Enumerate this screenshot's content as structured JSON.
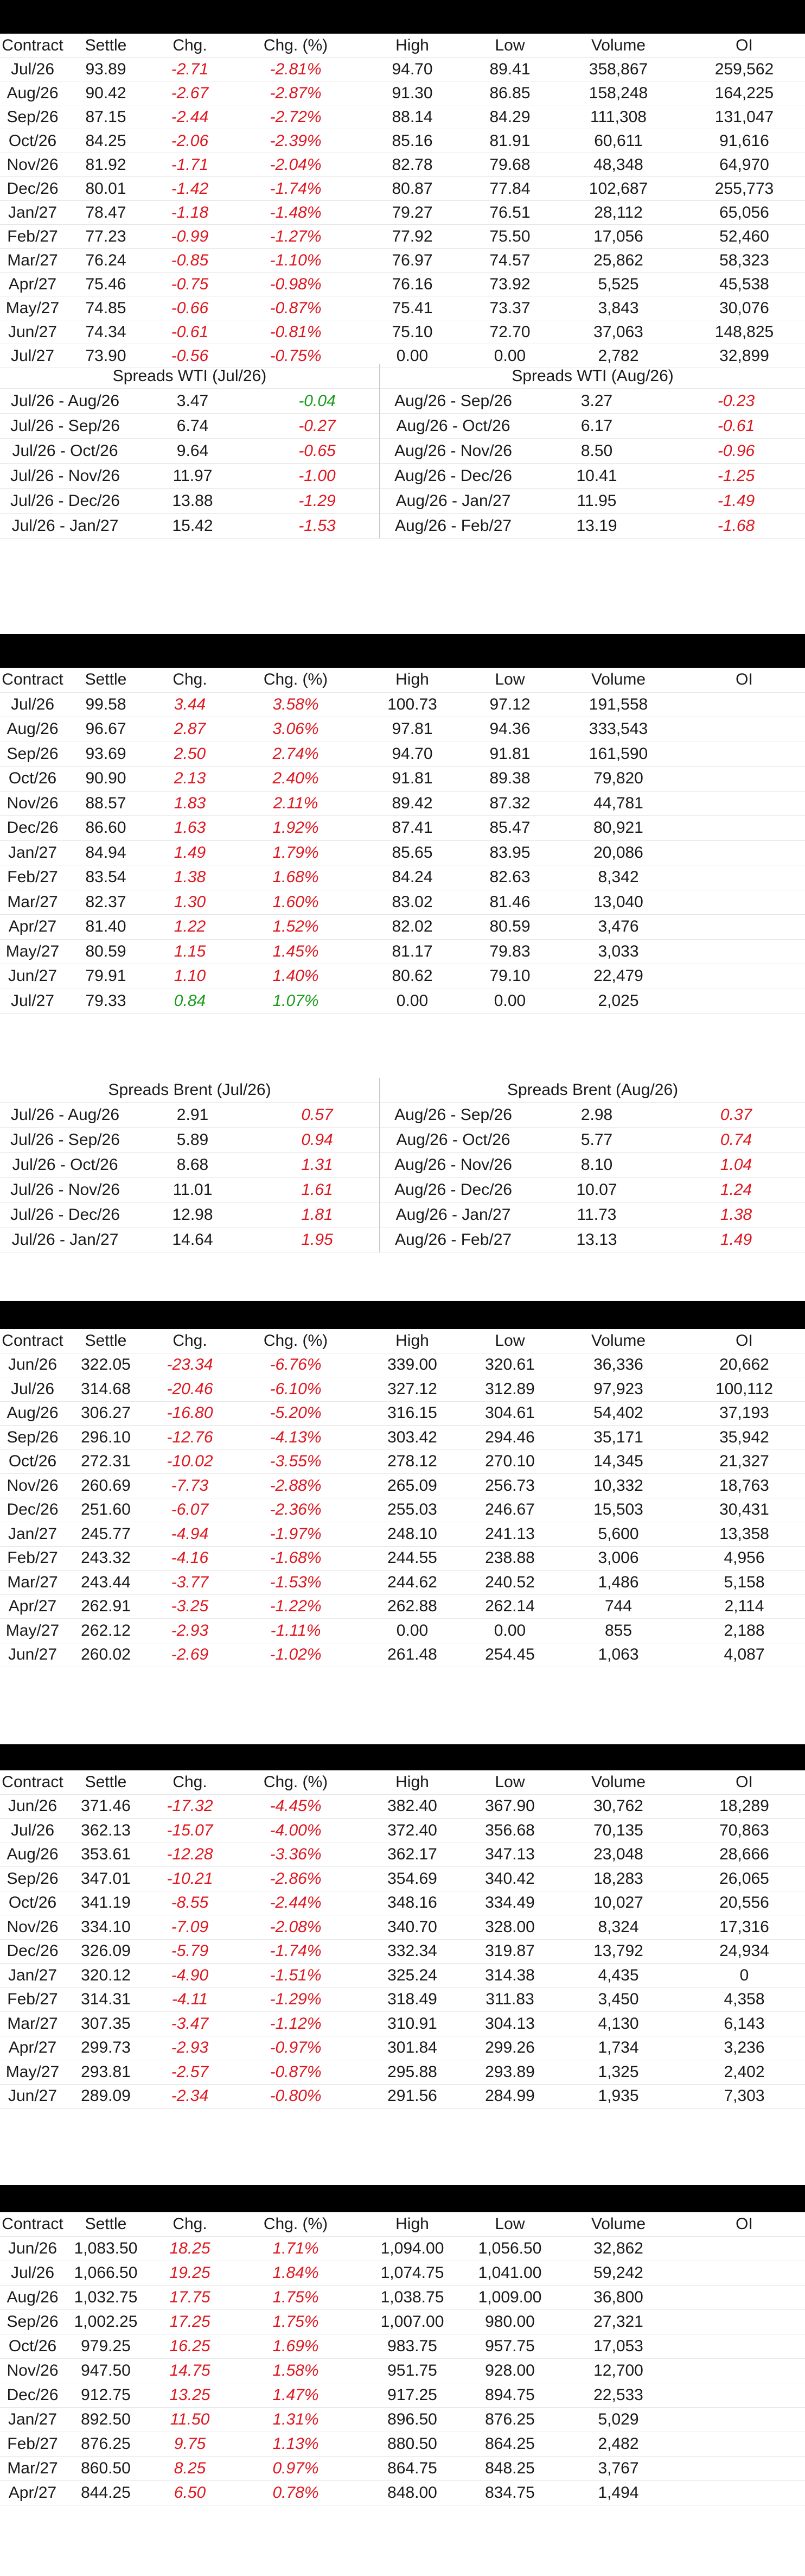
{
  "headers": [
    "Contract",
    "Settle",
    "Chg.",
    "Chg. (%)",
    "High",
    "Low",
    "Volume",
    "OI"
  ],
  "wti": {
    "rows": [
      [
        "Jul/26",
        "93.89",
        "-2.71",
        "-2.81%",
        "94.70",
        "89.41",
        "358,867",
        "259,562"
      ],
      [
        "Aug/26",
        "90.42",
        "-2.67",
        "-2.87%",
        "91.30",
        "86.85",
        "158,248",
        "164,225"
      ],
      [
        "Sep/26",
        "87.15",
        "-2.44",
        "-2.72%",
        "88.14",
        "84.29",
        "111,308",
        "131,047"
      ],
      [
        "Oct/26",
        "84.25",
        "-2.06",
        "-2.39%",
        "85.16",
        "81.91",
        "60,611",
        "91,616"
      ],
      [
        "Nov/26",
        "81.92",
        "-1.71",
        "-2.04%",
        "82.78",
        "79.68",
        "48,348",
        "64,970"
      ],
      [
        "Dec/26",
        "80.01",
        "-1.42",
        "-1.74%",
        "80.87",
        "77.84",
        "102,687",
        "255,773"
      ],
      [
        "Jan/27",
        "78.47",
        "-1.18",
        "-1.48%",
        "79.27",
        "76.51",
        "28,112",
        "65,056"
      ],
      [
        "Feb/27",
        "77.23",
        "-0.99",
        "-1.27%",
        "77.92",
        "75.50",
        "17,056",
        "52,460"
      ],
      [
        "Mar/27",
        "76.24",
        "-0.85",
        "-1.10%",
        "76.97",
        "74.57",
        "25,862",
        "58,323"
      ],
      [
        "Apr/27",
        "75.46",
        "-0.75",
        "-0.98%",
        "76.16",
        "73.92",
        "5,525",
        "45,538"
      ],
      [
        "May/27",
        "74.85",
        "-0.66",
        "-0.87%",
        "75.41",
        "73.37",
        "3,843",
        "30,076"
      ],
      [
        "Jun/27",
        "74.34",
        "-0.61",
        "-0.81%",
        "75.10",
        "72.70",
        "37,063",
        "148,825"
      ],
      [
        "Jul/27",
        "73.90",
        "-0.56",
        "-0.75%",
        "0.00",
        "0.00",
        "2,782",
        "32,899"
      ]
    ],
    "spreads": {
      "left_title": "Spreads WTI (Jul/26)",
      "right_title": "Spreads WTI (Aug/26)",
      "rows": [
        [
          "Jul/26 - Aug/26",
          "3.47",
          "-0.04",
          "Aug/26 - Sep/26",
          "3.27",
          "-0.23"
        ],
        [
          "Jul/26 - Sep/26",
          "6.74",
          "-0.27",
          "Aug/26 - Oct/26",
          "6.17",
          "-0.61"
        ],
        [
          "Jul/26 - Oct/26",
          "9.64",
          "-0.65",
          "Aug/26 - Nov/26",
          "8.50",
          "-0.96"
        ],
        [
          "Jul/26 - Nov/26",
          "11.97",
          "-1.00",
          "Aug/26 - Dec/26",
          "10.41",
          "-1.25"
        ],
        [
          "Jul/26 - Dec/26",
          "13.88",
          "-1.29",
          "Aug/26 - Jan/27",
          "11.95",
          "-1.49"
        ],
        [
          "Jul/26 - Jan/27",
          "15.42",
          "-1.53",
          "Aug/26 - Feb/27",
          "13.19",
          "-1.68"
        ]
      ],
      "left_first_color": "green"
    }
  },
  "brent": {
    "rows": [
      [
        "Jul/26",
        "99.58",
        "3.44",
        "3.58%",
        "100.73",
        "97.12",
        "191,558",
        ""
      ],
      [
        "Aug/26",
        "96.67",
        "2.87",
        "3.06%",
        "97.81",
        "94.36",
        "333,543",
        ""
      ],
      [
        "Sep/26",
        "93.69",
        "2.50",
        "2.74%",
        "94.70",
        "91.81",
        "161,590",
        ""
      ],
      [
        "Oct/26",
        "90.90",
        "2.13",
        "2.40%",
        "91.81",
        "89.38",
        "79,820",
        ""
      ],
      [
        "Nov/26",
        "88.57",
        "1.83",
        "2.11%",
        "89.42",
        "87.32",
        "44,781",
        ""
      ],
      [
        "Dec/26",
        "86.60",
        "1.63",
        "1.92%",
        "87.41",
        "85.47",
        "80,921",
        ""
      ],
      [
        "Jan/27",
        "84.94",
        "1.49",
        "1.79%",
        "85.65",
        "83.95",
        "20,086",
        ""
      ],
      [
        "Feb/27",
        "83.54",
        "1.38",
        "1.68%",
        "84.24",
        "82.63",
        "8,342",
        ""
      ],
      [
        "Mar/27",
        "82.37",
        "1.30",
        "1.60%",
        "83.02",
        "81.46",
        "13,040",
        ""
      ],
      [
        "Apr/27",
        "81.40",
        "1.22",
        "1.52%",
        "82.02",
        "80.59",
        "3,476",
        ""
      ],
      [
        "May/27",
        "80.59",
        "1.15",
        "1.45%",
        "81.17",
        "79.83",
        "3,033",
        ""
      ],
      [
        "Jun/27",
        "79.91",
        "1.10",
        "1.40%",
        "80.62",
        "79.10",
        "22,479",
        ""
      ],
      [
        "Jul/27",
        "79.33",
        "0.84",
        "1.07%",
        "0.00",
        "0.00",
        "2,025",
        ""
      ]
    ],
    "spreads": {
      "left_title": "Spreads Brent (Jul/26)",
      "right_title": "Spreads Brent (Aug/26)",
      "rows": [
        [
          "Jul/26 - Aug/26",
          "2.91",
          "0.57",
          "Aug/26 - Sep/26",
          "2.98",
          "0.37"
        ],
        [
          "Jul/26 - Sep/26",
          "5.89",
          "0.94",
          "Aug/26 - Oct/26",
          "5.77",
          "0.74"
        ],
        [
          "Jul/26 - Oct/26",
          "8.68",
          "1.31",
          "Aug/26 - Nov/26",
          "8.10",
          "1.04"
        ],
        [
          "Jul/26 - Nov/26",
          "11.01",
          "1.61",
          "Aug/26 - Dec/26",
          "10.07",
          "1.24"
        ],
        [
          "Jul/26 - Dec/26",
          "12.98",
          "1.81",
          "Aug/26 - Jan/27",
          "11.73",
          "1.38"
        ],
        [
          "Jul/26 - Jan/27",
          "14.64",
          "1.95",
          "Aug/26 - Feb/27",
          "13.13",
          "1.49"
        ]
      ]
    }
  },
  "table3": {
    "rows": [
      [
        "Jun/26",
        "322.05",
        "-23.34",
        "-6.76%",
        "339.00",
        "320.61",
        "36,336",
        "20,662"
      ],
      [
        "Jul/26",
        "314.68",
        "-20.46",
        "-6.10%",
        "327.12",
        "312.89",
        "97,923",
        "100,112"
      ],
      [
        "Aug/26",
        "306.27",
        "-16.80",
        "-5.20%",
        "316.15",
        "304.61",
        "54,402",
        "37,193"
      ],
      [
        "Sep/26",
        "296.10",
        "-12.76",
        "-4.13%",
        "303.42",
        "294.46",
        "35,171",
        "35,942"
      ],
      [
        "Oct/26",
        "272.31",
        "-10.02",
        "-3.55%",
        "278.12",
        "270.10",
        "14,345",
        "21,327"
      ],
      [
        "Nov/26",
        "260.69",
        "-7.73",
        "-2.88%",
        "265.09",
        "256.73",
        "10,332",
        "18,763"
      ],
      [
        "Dec/26",
        "251.60",
        "-6.07",
        "-2.36%",
        "255.03",
        "246.67",
        "15,503",
        "30,431"
      ],
      [
        "Jan/27",
        "245.77",
        "-4.94",
        "-1.97%",
        "248.10",
        "241.13",
        "5,600",
        "13,358"
      ],
      [
        "Feb/27",
        "243.32",
        "-4.16",
        "-1.68%",
        "244.55",
        "238.88",
        "3,006",
        "4,956"
      ],
      [
        "Mar/27",
        "243.44",
        "-3.77",
        "-1.53%",
        "244.62",
        "240.52",
        "1,486",
        "5,158"
      ],
      [
        "Apr/27",
        "262.91",
        "-3.25",
        "-1.22%",
        "262.88",
        "262.14",
        "744",
        "2,114"
      ],
      [
        "May/27",
        "262.12",
        "-2.93",
        "-1.11%",
        "0.00",
        "0.00",
        "855",
        "2,188"
      ],
      [
        "Jun/27",
        "260.02",
        "-2.69",
        "-1.02%",
        "261.48",
        "254.45",
        "1,063",
        "4,087"
      ]
    ]
  },
  "table4": {
    "rows": [
      [
        "Jun/26",
        "371.46",
        "-17.32",
        "-4.45%",
        "382.40",
        "367.90",
        "30,762",
        "18,289"
      ],
      [
        "Jul/26",
        "362.13",
        "-15.07",
        "-4.00%",
        "372.40",
        "356.68",
        "70,135",
        "70,863"
      ],
      [
        "Aug/26",
        "353.61",
        "-12.28",
        "-3.36%",
        "362.17",
        "347.13",
        "23,048",
        "28,666"
      ],
      [
        "Sep/26",
        "347.01",
        "-10.21",
        "-2.86%",
        "354.69",
        "340.42",
        "18,283",
        "26,065"
      ],
      [
        "Oct/26",
        "341.19",
        "-8.55",
        "-2.44%",
        "348.16",
        "334.49",
        "10,027",
        "20,556"
      ],
      [
        "Nov/26",
        "334.10",
        "-7.09",
        "-2.08%",
        "340.70",
        "328.00",
        "8,324",
        "17,316"
      ],
      [
        "Dec/26",
        "326.09",
        "-5.79",
        "-1.74%",
        "332.34",
        "319.87",
        "13,792",
        "24,934"
      ],
      [
        "Jan/27",
        "320.12",
        "-4.90",
        "-1.51%",
        "325.24",
        "314.38",
        "4,435",
        "0"
      ],
      [
        "Feb/27",
        "314.31",
        "-4.11",
        "-1.29%",
        "318.49",
        "311.83",
        "3,450",
        "4,358"
      ],
      [
        "Mar/27",
        "307.35",
        "-3.47",
        "-1.12%",
        "310.91",
        "304.13",
        "4,130",
        "6,143"
      ],
      [
        "Apr/27",
        "299.73",
        "-2.93",
        "-0.97%",
        "301.84",
        "299.26",
        "1,734",
        "3,236"
      ],
      [
        "May/27",
        "293.81",
        "-2.57",
        "-0.87%",
        "295.88",
        "293.89",
        "1,325",
        "2,402"
      ],
      [
        "Jun/27",
        "289.09",
        "-2.34",
        "-0.80%",
        "291.56",
        "284.99",
        "1,935",
        "7,303"
      ]
    ]
  },
  "table5": {
    "rows": [
      [
        "Jun/26",
        "1,083.50",
        "18.25",
        "1.71%",
        "1,094.00",
        "1,056.50",
        "32,862",
        ""
      ],
      [
        "Jul/26",
        "1,066.50",
        "19.25",
        "1.84%",
        "1,074.75",
        "1,041.00",
        "59,242",
        ""
      ],
      [
        "Aug/26",
        "1,032.75",
        "17.75",
        "1.75%",
        "1,038.75",
        "1,009.00",
        "36,800",
        ""
      ],
      [
        "Sep/26",
        "1,002.25",
        "17.25",
        "1.75%",
        "1,007.00",
        "980.00",
        "27,321",
        ""
      ],
      [
        "Oct/26",
        "979.25",
        "16.25",
        "1.69%",
        "983.75",
        "957.75",
        "17,053",
        ""
      ],
      [
        "Nov/26",
        "947.50",
        "14.75",
        "1.58%",
        "951.75",
        "928.00",
        "12,700",
        ""
      ],
      [
        "Dec/26",
        "912.75",
        "13.25",
        "1.47%",
        "917.25",
        "894.75",
        "22,533",
        ""
      ],
      [
        "Jan/27",
        "892.50",
        "11.50",
        "1.31%",
        "896.50",
        "876.25",
        "5,029",
        ""
      ],
      [
        "Feb/27",
        "876.25",
        "9.75",
        "1.13%",
        "880.50",
        "864.25",
        "2,482",
        ""
      ],
      [
        "Mar/27",
        "860.50",
        "8.25",
        "0.97%",
        "864.75",
        "848.25",
        "3,767",
        ""
      ],
      [
        "Apr/27",
        "844.25",
        "6.50",
        "0.78%",
        "848.00",
        "834.75",
        "1,494",
        ""
      ]
    ]
  }
}
